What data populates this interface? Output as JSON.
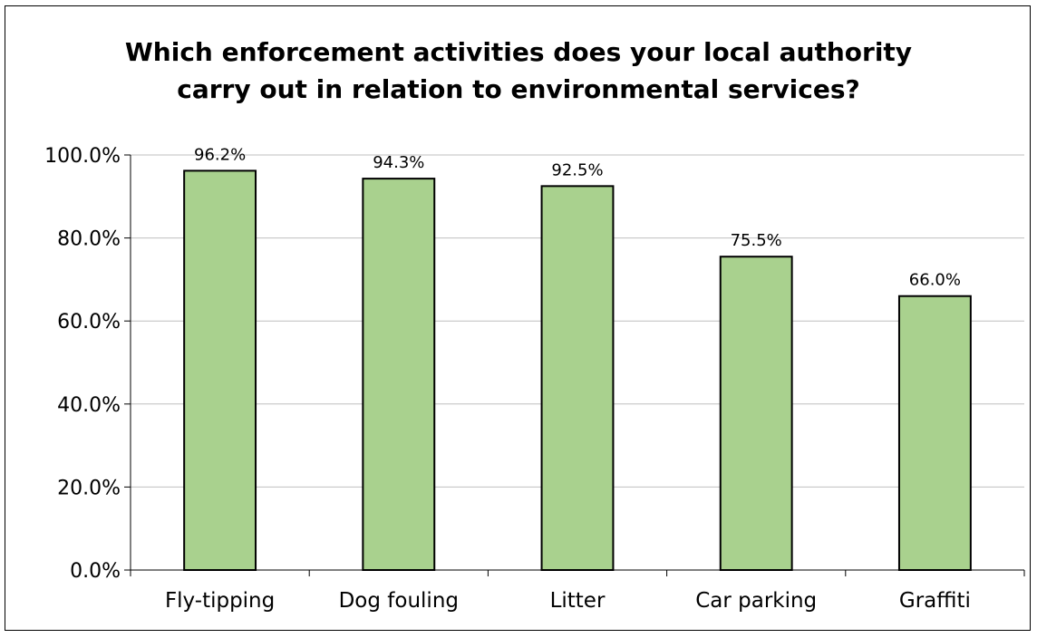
{
  "chart_data": {
    "type": "bar",
    "title_lines": [
      "Which enforcement activities does your local authority",
      "carry out in relation to environmental services?"
    ],
    "categories": [
      "Fly-tipping",
      "Dog fouling",
      "Litter",
      "Car parking",
      "Graffiti"
    ],
    "values": [
      96.2,
      94.3,
      92.5,
      75.5,
      66.0
    ],
    "data_labels": [
      "96.2%",
      "94.3%",
      "92.5%",
      "75.5%",
      "66.0%"
    ],
    "yticks": [
      0,
      20,
      40,
      60,
      80,
      100
    ],
    "ytick_labels": [
      "0.0%",
      "20.0%",
      "40.0%",
      "60.0%",
      "80.0%",
      "100.0%"
    ],
    "ylim": [
      0,
      100
    ],
    "xlabel": "",
    "ylabel": "",
    "grid": true,
    "legend": false,
    "colors": {
      "bar_fill": "#a9d18e",
      "bar_stroke": "#000000",
      "grid": "#bfbfbf",
      "axis": "#000000"
    }
  }
}
